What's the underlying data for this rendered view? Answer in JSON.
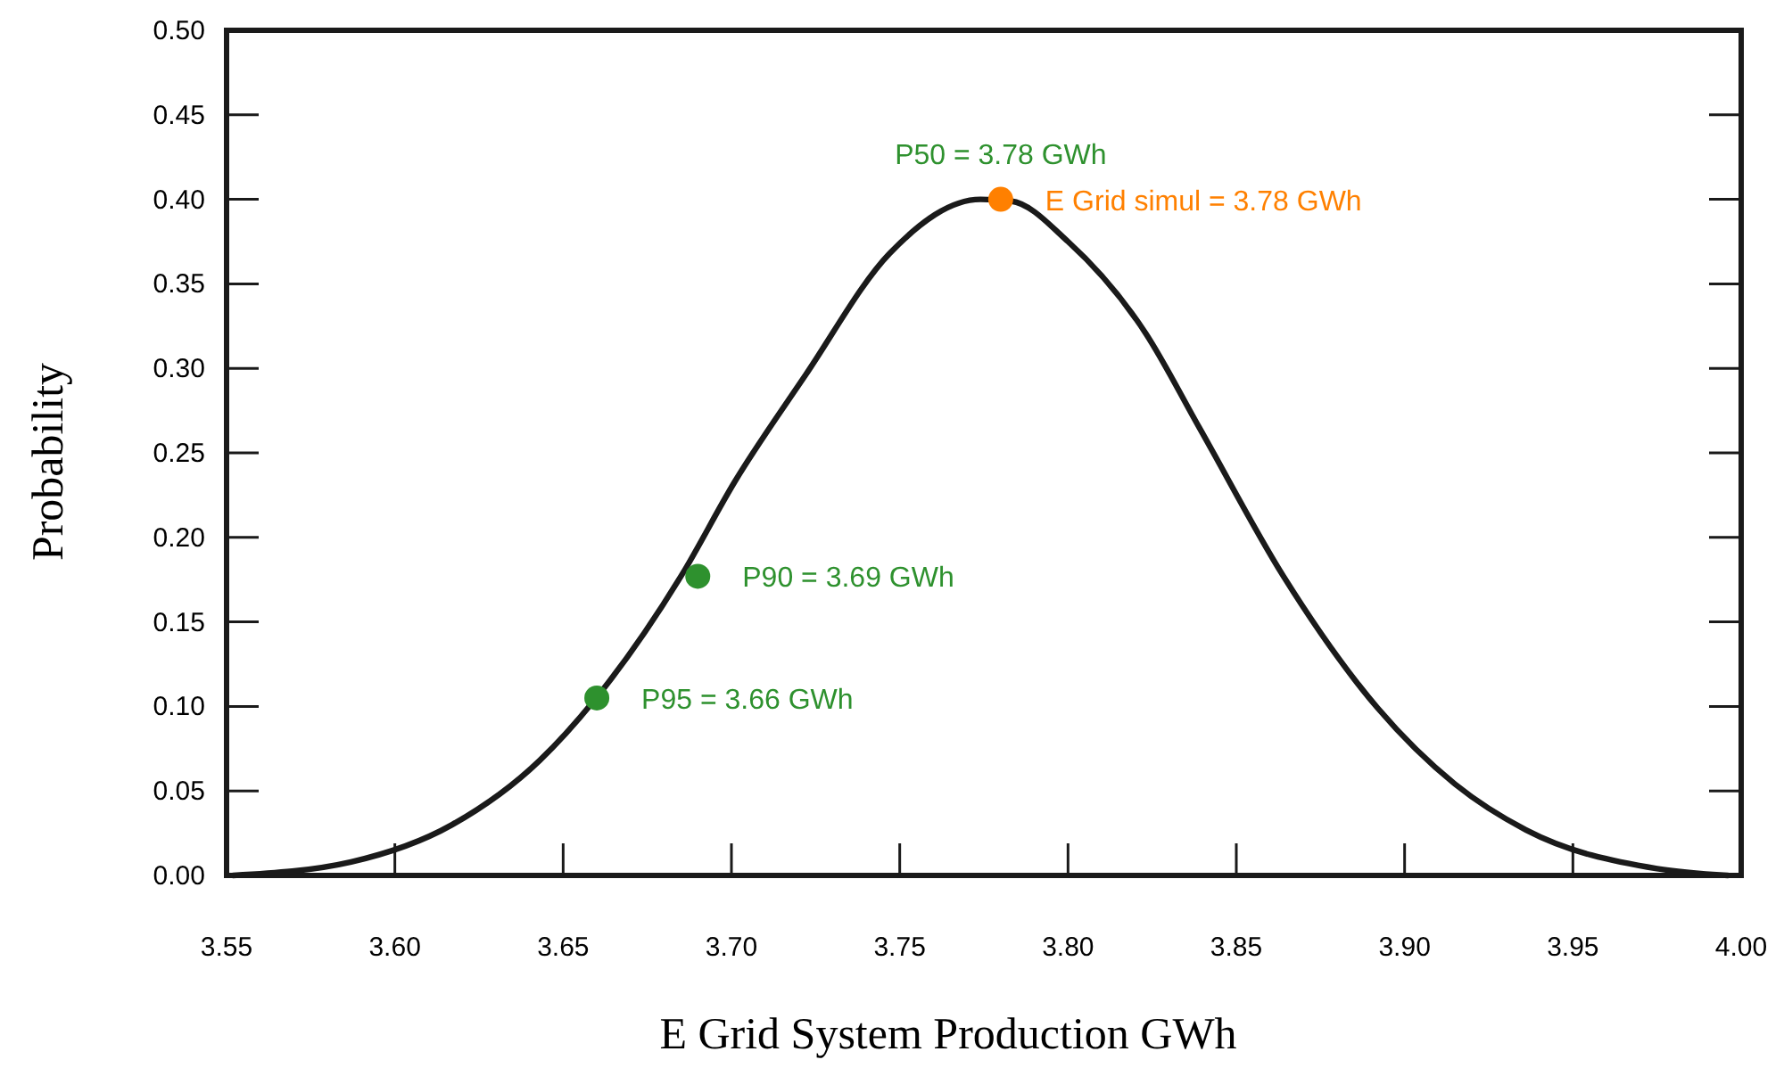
{
  "chart_data": {
    "type": "line",
    "xlabel": "E Grid System Production GWh",
    "ylabel": "Probability",
    "xlim": [
      3.55,
      4.0
    ],
    "ylim": [
      0,
      0.5
    ],
    "xticks": [
      3.55,
      {
        "value": 3.6,
        "label": "3.60"
      },
      3.65,
      {
        "value": 3.7,
        "label": "3.70"
      },
      3.75,
      {
        "value": 3.8,
        "label": "3.80"
      },
      3.85,
      {
        "value": 3.9,
        "label": "3.90"
      },
      3.95,
      {
        "value": 4.0,
        "label": "4.00"
      }
    ],
    "yticks": [
      {
        "value": 0,
        "label": "0.00"
      },
      0.05,
      {
        "value": 0.1,
        "label": "0.10"
      },
      0.15,
      {
        "value": 0.2,
        "label": "0.20"
      },
      0.25,
      {
        "value": 0.3,
        "label": "0.30"
      },
      0.35,
      {
        "value": 0.4,
        "label": "0.40"
      },
      0.45,
      {
        "value": 0.5,
        "label": "0.50"
      }
    ],
    "grid": false,
    "line_style": "solid",
    "series": [
      {
        "color": "#1a1a1a",
        "marker": "none",
        "x": [
          3.552,
          3.587,
          3.617,
          3.643,
          3.659,
          3.685,
          3.701,
          3.722,
          3.747,
          3.774,
          3.783,
          3.8,
          3.823,
          3.839,
          3.864,
          3.892,
          3.915,
          3.936,
          3.975,
          3.996
        ],
        "values": [
          0.0,
          0.008,
          0.03,
          0.068,
          0.103,
          0.177,
          0.233,
          0.296,
          0.368,
          0.4,
          0.399,
          0.375,
          0.321,
          0.265,
          0.177,
          0.099,
          0.054,
          0.027,
          0.004,
          0.0
        ]
      },
      {
        "type": "scatter",
        "marker": "circle",
        "x": [
          3.66,
          3.69,
          3.78
        ],
        "values": [
          0.105,
          0.177,
          0.4
        ],
        "colors": [
          "#2e912e",
          "#2e912e",
          "#ff8000"
        ]
      }
    ],
    "annotations": [
      {
        "text": "P95 = 3.66 GWh",
        "x": 3.66,
        "y": 0.105
      },
      {
        "text": "P90 = 3.69 GWh",
        "x": 3.69,
        "y": 0.177
      },
      {
        "text": "P50 = 3.78 GWh",
        "x": 3.78,
        "y": 0.4
      },
      {
        "text": "E Grid simul = 3.78 GWh",
        "x": 3.78,
        "y": 0.4
      }
    ]
  }
}
